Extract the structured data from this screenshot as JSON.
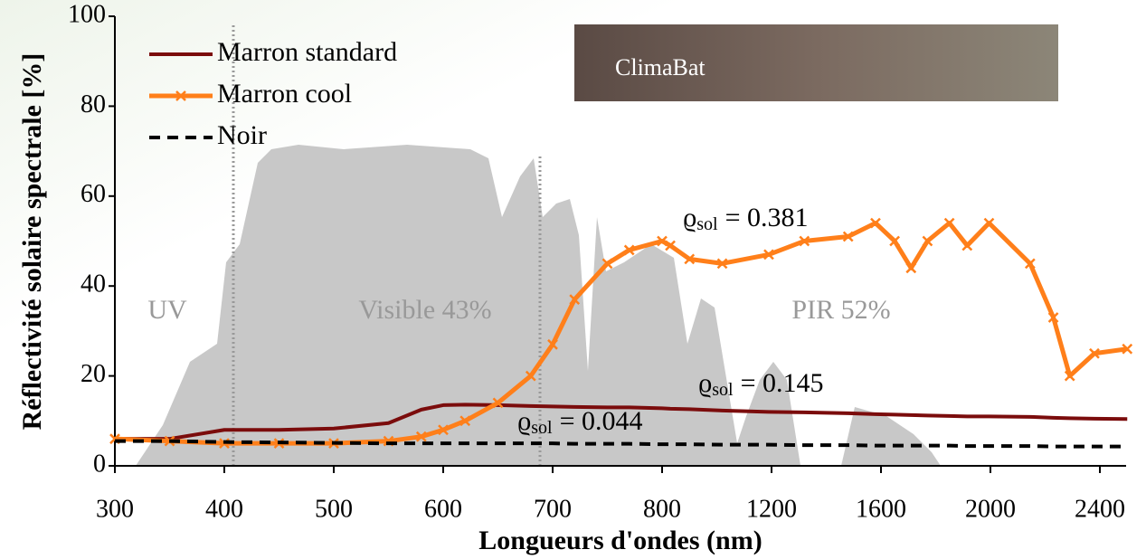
{
  "chart_data": {
    "type": "line",
    "y_label": "Réflectivité solaire spectrale [%]",
    "x_label": "Longueurs d'ondes (nm)",
    "photo_label": "ClimaBat",
    "x": [
      300,
      350,
      400,
      450,
      500,
      550,
      580,
      600,
      620,
      650,
      680,
      700,
      720,
      750,
      770,
      800,
      830,
      900,
      1020,
      1190,
      1320,
      1480,
      1580,
      1650,
      1710,
      1770,
      1850,
      1915,
      1995,
      2145,
      2230,
      2290,
      2380,
      2500
    ],
    "series": [
      {
        "name": "Marron standard",
        "color": "#7b0c0c",
        "dash": false,
        "markers": false,
        "values": [
          6,
          6,
          8,
          8,
          8.3,
          9.5,
          12.5,
          13.5,
          13.6,
          13.5,
          13.3,
          13.2,
          13.1,
          13,
          13,
          12.8,
          12.7,
          12.6,
          12.3,
          12,
          11.9,
          11.7,
          11.5,
          11.4,
          11.3,
          11.2,
          11.1,
          11,
          11,
          10.9,
          10.7,
          10.6,
          10.5,
          10.4
        ]
      },
      {
        "name": "Marron cool",
        "color": "#ff7f1a",
        "dash": false,
        "markers": true,
        "values": [
          6,
          5.5,
          5,
          5,
          5,
          5.5,
          6.5,
          8,
          10,
          14,
          20,
          27,
          37,
          45,
          48,
          50,
          49,
          46,
          45,
          47,
          50,
          51,
          54,
          50,
          44,
          50,
          54,
          49,
          54,
          45,
          33,
          20,
          25,
          26
        ]
      },
      {
        "name": "Noir",
        "color": "#000000",
        "dash": true,
        "markers": false,
        "values": [
          5.5,
          5.5,
          5.3,
          5.2,
          5.1,
          5,
          5,
          5,
          5,
          5,
          5,
          5,
          4.9,
          4.9,
          4.9,
          4.8,
          4.8,
          4.8,
          4.7,
          4.7,
          4.6,
          4.6,
          4.5,
          4.5,
          4.5,
          4.5,
          4.5,
          4.4,
          4.4,
          4.4,
          4.3,
          4.3,
          4.3,
          4.3
        ]
      }
    ],
    "annotations": [
      {
        "text": "UV"
      },
      {
        "text": "Visible 43%"
      },
      {
        "text": "PIR 52%"
      },
      {
        "symbol": "ϱ",
        "sub": "sol",
        "text": "= 0.381"
      },
      {
        "symbol": "ϱ",
        "sub": "sol",
        "text": "= 0.145"
      },
      {
        "symbol": "ϱ",
        "sub": "sol",
        "text": "= 0.044"
      }
    ],
    "xlim": [
      300,
      2500
    ],
    "xticks": [
      300,
      400,
      500,
      600,
      700,
      800,
      1200,
      1600,
      2000,
      2400
    ],
    "ylim": [
      0,
      100
    ],
    "yticks": [
      0,
      20,
      40,
      60,
      80,
      100
    ],
    "legend": "top-left"
  }
}
